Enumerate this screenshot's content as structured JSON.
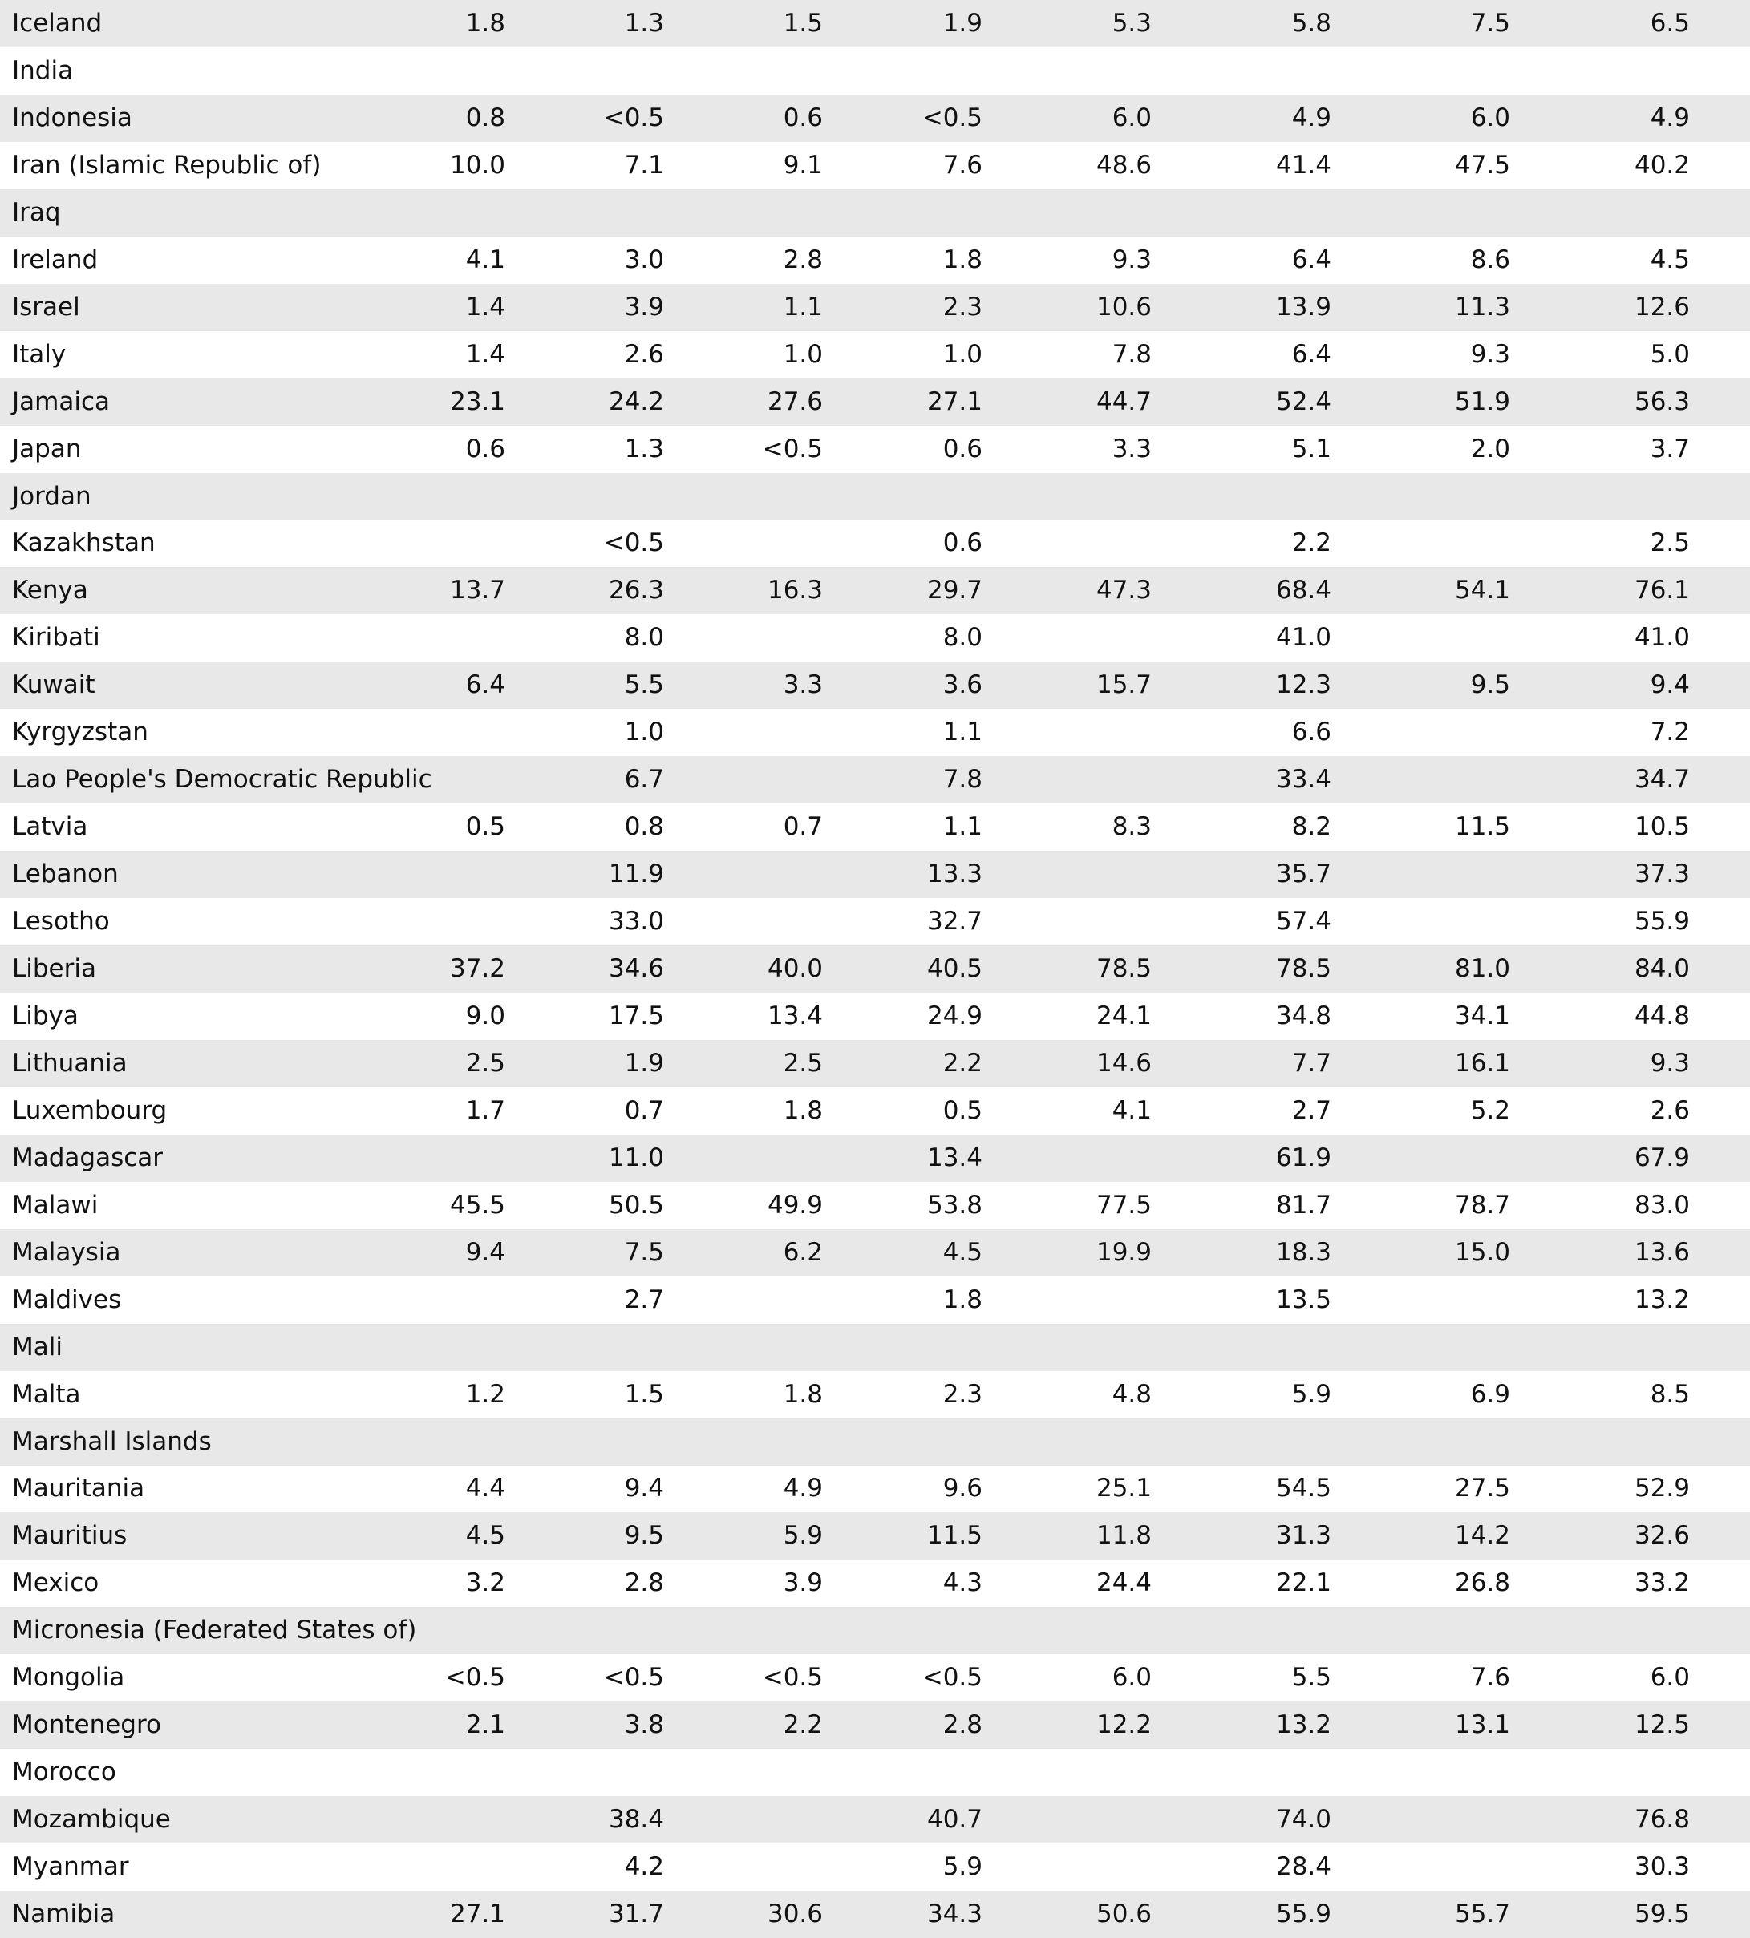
{
  "table": {
    "rows": [
      [
        "Iceland",
        "1.8",
        "1.3",
        "1.5",
        "1.9",
        "5.3",
        "5.8",
        "7.5",
        "6.5"
      ],
      [
        "India",
        null,
        null,
        null,
        null,
        null,
        null,
        null,
        null
      ],
      [
        "Indonesia",
        "0.8",
        "<0.5",
        "0.6",
        "<0.5",
        "6.0",
        "4.9",
        "6.0",
        "4.9"
      ],
      [
        "Iran (Islamic Republic of)",
        "10.0",
        "7.1",
        "9.1",
        "7.6",
        "48.6",
        "41.4",
        "47.5",
        "40.2"
      ],
      [
        "Iraq",
        null,
        null,
        null,
        null,
        null,
        null,
        null,
        null
      ],
      [
        "Ireland",
        "4.1",
        "3.0",
        "2.8",
        "1.8",
        "9.3",
        "6.4",
        "8.6",
        "4.5"
      ],
      [
        "Israel",
        "1.4",
        "3.9",
        "1.1",
        "2.3",
        "10.6",
        "13.9",
        "11.3",
        "12.6"
      ],
      [
        "Italy",
        "1.4",
        "2.6",
        "1.0",
        "1.0",
        "7.8",
        "6.4",
        "9.3",
        "5.0"
      ],
      [
        "Jamaica",
        "23.1",
        "24.2",
        "27.6",
        "27.1",
        "44.7",
        "52.4",
        "51.9",
        "56.3"
      ],
      [
        "Japan",
        "0.6",
        "1.3",
        "<0.5",
        "0.6",
        "3.3",
        "5.1",
        "2.0",
        "3.7"
      ],
      [
        "Jordan",
        null,
        null,
        null,
        null,
        null,
        null,
        null,
        null
      ],
      [
        "Kazakhstan",
        null,
        "<0.5",
        null,
        "0.6",
        null,
        "2.2",
        null,
        "2.5"
      ],
      [
        "Kenya",
        "13.7",
        "26.3",
        "16.3",
        "29.7",
        "47.3",
        "68.4",
        "54.1",
        "76.1"
      ],
      [
        "Kiribati",
        null,
        "8.0",
        null,
        "8.0",
        null,
        "41.0",
        null,
        "41.0"
      ],
      [
        "Kuwait",
        "6.4",
        "5.5",
        "3.3",
        "3.6",
        "15.7",
        "12.3",
        "9.5",
        "9.4"
      ],
      [
        "Kyrgyzstan",
        null,
        "1.0",
        null,
        "1.1",
        null,
        "6.6",
        null,
        "7.2"
      ],
      [
        "Lao People's Democratic Republic",
        null,
        "6.7",
        null,
        "7.8",
        null,
        "33.4",
        null,
        "34.7"
      ],
      [
        "Latvia",
        "0.5",
        "0.8",
        "0.7",
        "1.1",
        "8.3",
        "8.2",
        "11.5",
        "10.5"
      ],
      [
        "Lebanon",
        null,
        "11.9",
        null,
        "13.3",
        null,
        "35.7",
        null,
        "37.3"
      ],
      [
        "Lesotho",
        null,
        "33.0",
        null,
        "32.7",
        null,
        "57.4",
        null,
        "55.9"
      ],
      [
        "Liberia",
        "37.2",
        "34.6",
        "40.0",
        "40.5",
        "78.5",
        "78.5",
        "81.0",
        "84.0"
      ],
      [
        "Libya",
        "9.0",
        "17.5",
        "13.4",
        "24.9",
        "24.1",
        "34.8",
        "34.1",
        "44.8"
      ],
      [
        "Lithuania",
        "2.5",
        "1.9",
        "2.5",
        "2.2",
        "14.6",
        "7.7",
        "16.1",
        "9.3"
      ],
      [
        "Luxembourg",
        "1.7",
        "0.7",
        "1.8",
        "0.5",
        "4.1",
        "2.7",
        "5.2",
        "2.6"
      ],
      [
        "Madagascar",
        null,
        "11.0",
        null,
        "13.4",
        null,
        "61.9",
        null,
        "67.9"
      ],
      [
        "Malawi",
        "45.5",
        "50.5",
        "49.9",
        "53.8",
        "77.5",
        "81.7",
        "78.7",
        "83.0"
      ],
      [
        "Malaysia",
        "9.4",
        "7.5",
        "6.2",
        "4.5",
        "19.9",
        "18.3",
        "15.0",
        "13.6"
      ],
      [
        "Maldives",
        null,
        "2.7",
        null,
        "1.8",
        null,
        "13.5",
        null,
        "13.2"
      ],
      [
        "Mali",
        null,
        null,
        null,
        null,
        null,
        null,
        null,
        null
      ],
      [
        "Malta",
        "1.2",
        "1.5",
        "1.8",
        "2.3",
        "4.8",
        "5.9",
        "6.9",
        "8.5"
      ],
      [
        "Marshall Islands",
        null,
        null,
        null,
        null,
        null,
        null,
        null,
        null
      ],
      [
        "Mauritania",
        "4.4",
        "9.4",
        "4.9",
        "9.6",
        "25.1",
        "54.5",
        "27.5",
        "52.9"
      ],
      [
        "Mauritius",
        "4.5",
        "9.5",
        "5.9",
        "11.5",
        "11.8",
        "31.3",
        "14.2",
        "32.6"
      ],
      [
        "Mexico",
        "3.2",
        "2.8",
        "3.9",
        "4.3",
        "24.4",
        "22.1",
        "26.8",
        "33.2"
      ],
      [
        "Micronesia (Federated States of)",
        null,
        null,
        null,
        null,
        null,
        null,
        null,
        null
      ],
      [
        "Mongolia",
        "<0.5",
        "<0.5",
        "<0.5",
        "<0.5",
        "6.0",
        "5.5",
        "7.6",
        "6.0"
      ],
      [
        "Montenegro",
        "2.1",
        "3.8",
        "2.2",
        "2.8",
        "12.2",
        "13.2",
        "13.1",
        "12.5"
      ],
      [
        "Morocco",
        null,
        null,
        null,
        null,
        null,
        null,
        null,
        null
      ],
      [
        "Mozambique",
        null,
        "38.4",
        null,
        "40.7",
        null,
        "74.0",
        null,
        "76.8"
      ],
      [
        "Myanmar",
        null,
        "4.2",
        null,
        "5.9",
        null,
        "28.4",
        null,
        "30.3"
      ],
      [
        "Namibia",
        "27.1",
        "31.7",
        "30.6",
        "34.3",
        "50.6",
        "55.9",
        "55.7",
        "59.5"
      ]
    ]
  }
}
